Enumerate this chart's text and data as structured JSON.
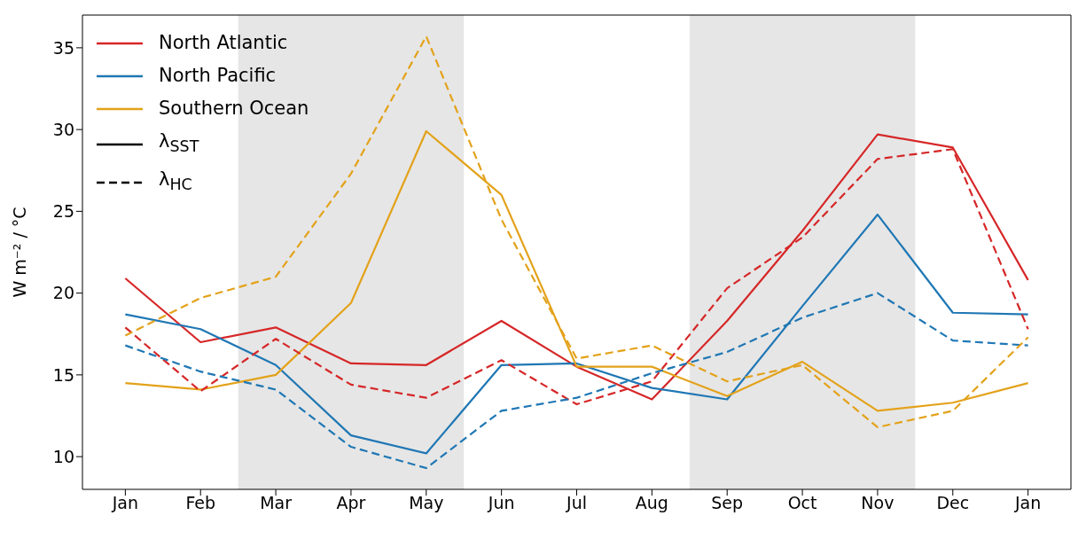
{
  "chart_data": {
    "type": "line",
    "ylabel": "W m⁻² / °C",
    "categories": [
      "Jan",
      "Feb",
      "Mar",
      "Apr",
      "May",
      "Jun",
      "Jul",
      "Aug",
      "Sep",
      "Oct",
      "Nov",
      "Dec",
      "Jan"
    ],
    "ylim": [
      8,
      37
    ],
    "yticks": [
      10,
      15,
      20,
      25,
      30,
      35
    ],
    "series": [
      {
        "name": "North Atlantic",
        "color": "#d62728",
        "line_style": "solid",
        "values": [
          20.9,
          17.0,
          17.9,
          15.7,
          15.6,
          18.3,
          15.5,
          13.5,
          18.3,
          23.8,
          29.7,
          28.9,
          20.8
        ]
      },
      {
        "name": "North Pacific",
        "color": "#1f77b4",
        "line_style": "solid",
        "values": [
          18.7,
          17.8,
          15.6,
          11.3,
          10.2,
          15.6,
          15.7,
          14.2,
          13.5,
          19.2,
          24.8,
          18.8,
          18.7
        ]
      },
      {
        "name": "Southern Ocean",
        "color": "#e3a21a",
        "line_style": "solid",
        "values": [
          14.5,
          14.1,
          15.0,
          19.4,
          29.9,
          26.0,
          15.5,
          15.5,
          13.7,
          15.8,
          12.8,
          13.3,
          14.5
        ]
      },
      {
        "color": "#d62728",
        "line_style": "dashed",
        "values": [
          17.9,
          14.0,
          17.2,
          14.4,
          13.6,
          15.9,
          13.2,
          14.6,
          20.3,
          23.4,
          28.2,
          28.8,
          17.8
        ]
      },
      {
        "color": "#1f77b4",
        "line_style": "dashed",
        "values": [
          16.8,
          15.2,
          14.1,
          10.6,
          9.3,
          12.8,
          13.6,
          15.1,
          16.4,
          18.5,
          20.0,
          17.1,
          16.8
        ]
      },
      {
        "color": "#e3a21a",
        "line_style": "dashed",
        "values": [
          17.4,
          19.7,
          21.0,
          27.3,
          35.7,
          24.5,
          16.0,
          16.8,
          14.6,
          15.6,
          11.8,
          12.8,
          17.3
        ]
      }
    ],
    "bands": [
      {
        "axis": "x",
        "from": "Mar",
        "to": "May",
        "color": "#e6e6e6"
      },
      {
        "axis": "x",
        "from": "Sep",
        "to": "Nov",
        "color": "#e6e6e6"
      }
    ],
    "annotations": [
      "λ$_{SST}$",
      "λ$_{HC}$"
    ],
    "legend": "top left",
    "grid": false,
    "marker": "none"
  }
}
